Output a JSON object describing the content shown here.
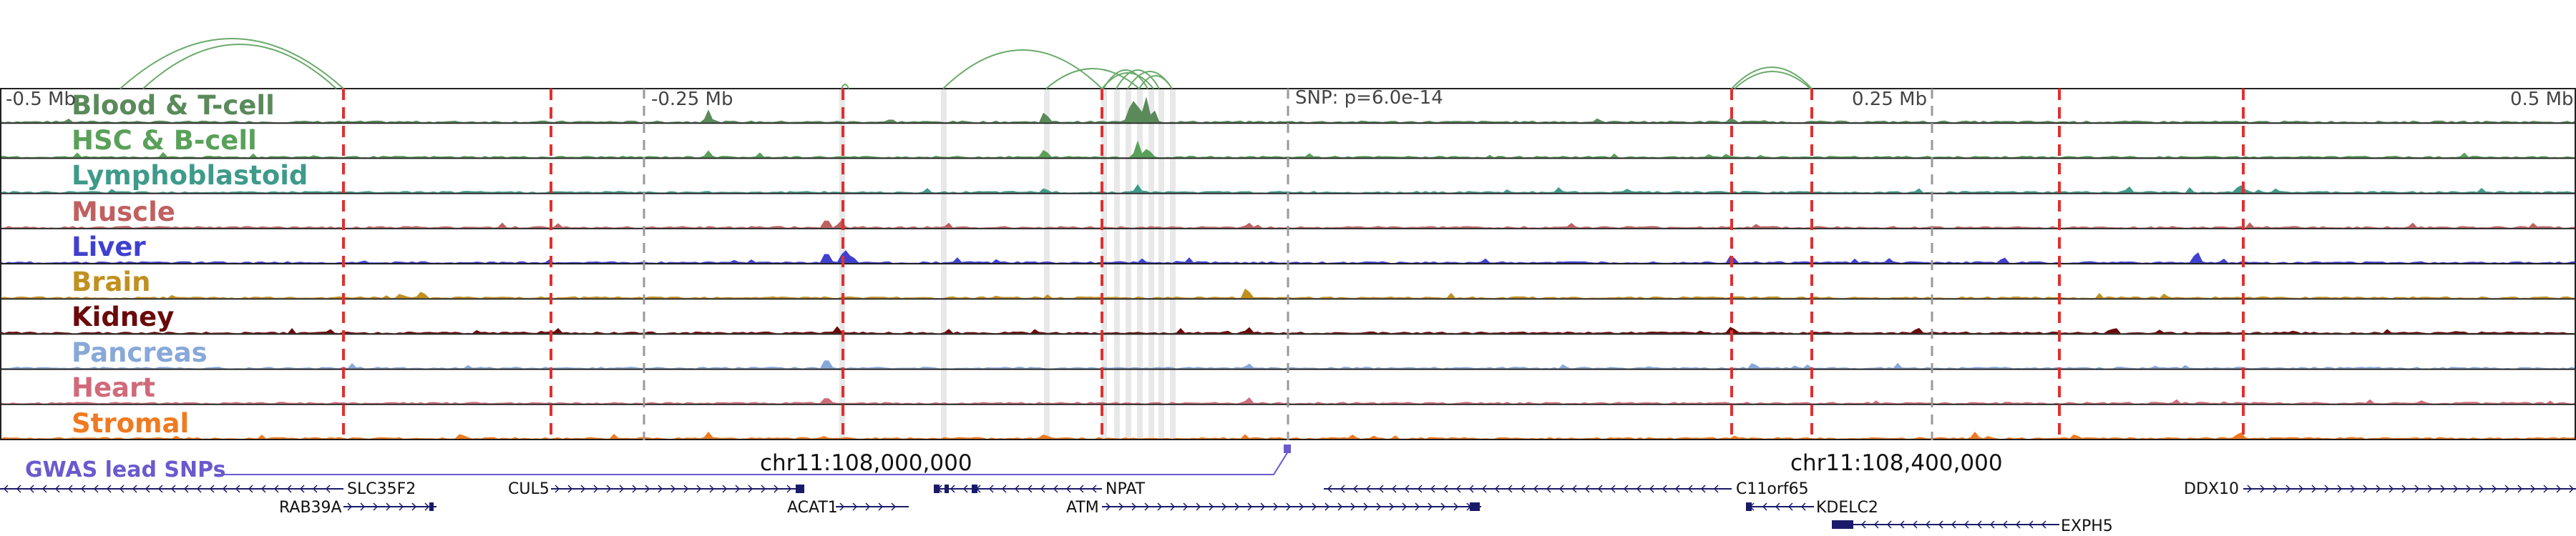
{
  "tracks": [
    {
      "id": "blood",
      "label": "Blood & T-cell",
      "color": "#5a8a5a"
    },
    {
      "id": "hsc",
      "label": "HSC & B-cell",
      "color": "#5aa05a"
    },
    {
      "id": "lympho",
      "label": "Lymphoblastoid",
      "color": "#3f9a8a"
    },
    {
      "id": "muscle",
      "label": "Muscle",
      "color": "#c06060"
    },
    {
      "id": "liver",
      "label": "Liver",
      "color": "#4040d0"
    },
    {
      "id": "brain",
      "label": "Brain",
      "color": "#c09020"
    },
    {
      "id": "kidney",
      "label": "Kidney",
      "color": "#6a0a0a"
    },
    {
      "id": "pancreas",
      "label": "Pancreas",
      "color": "#88a8d8"
    },
    {
      "id": "heart",
      "label": "Heart",
      "color": "#d06a7a"
    },
    {
      "id": "stromal",
      "label": "Stromal",
      "color": "#f07a20"
    }
  ],
  "axis": {
    "left": "-0.5 Mb",
    "left_mid": "-0.25 Mb",
    "snp": "SNP: p=6.0e-14",
    "right_mid": "0.25 Mb",
    "right": "0.5 Mb"
  },
  "coords": {
    "c1": "chr11:108,000,000",
    "c2": "chr11:108,400,000"
  },
  "gwas_label": "GWAS lead SNPs",
  "genes": [
    {
      "name": "SLC35F2"
    },
    {
      "name": "RAB39A"
    },
    {
      "name": "CUL5"
    },
    {
      "name": "ACAT1"
    },
    {
      "name": "NPAT"
    },
    {
      "name": "ATM"
    },
    {
      "name": "C11orf65"
    },
    {
      "name": "KDELC2"
    },
    {
      "name": "EXPH5"
    },
    {
      "name": "DDX10"
    }
  ],
  "colors": {
    "marker_red": "#e03030",
    "gwas": "#6a5acd",
    "gene": "#1a1a6a",
    "arc": "#6aaa6a"
  }
}
